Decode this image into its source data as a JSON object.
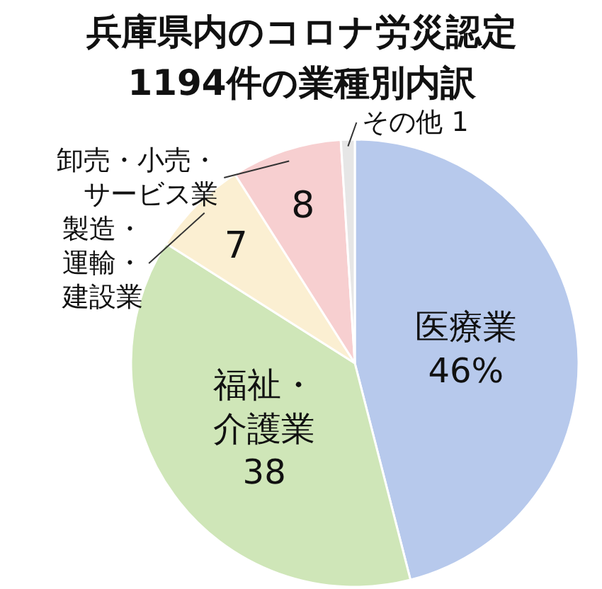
{
  "chart_data": {
    "type": "pie",
    "title": "兵庫県内のコロナ労災認定\n1194件の業種別内訳",
    "categories": [
      "医療業",
      "福祉・介護業",
      "製造・運輸・建設業",
      "卸売・小売・サービス業",
      "その他"
    ],
    "values": [
      46,
      38,
      7,
      8,
      1
    ],
    "value_labels": [
      "46%",
      "38",
      "7",
      "8",
      "1"
    ],
    "colors": [
      "#b7c9ec",
      "#cfe6b8",
      "#fbefd2",
      "#f7cfd0",
      "#e6e6e6"
    ],
    "legend": false
  }
}
